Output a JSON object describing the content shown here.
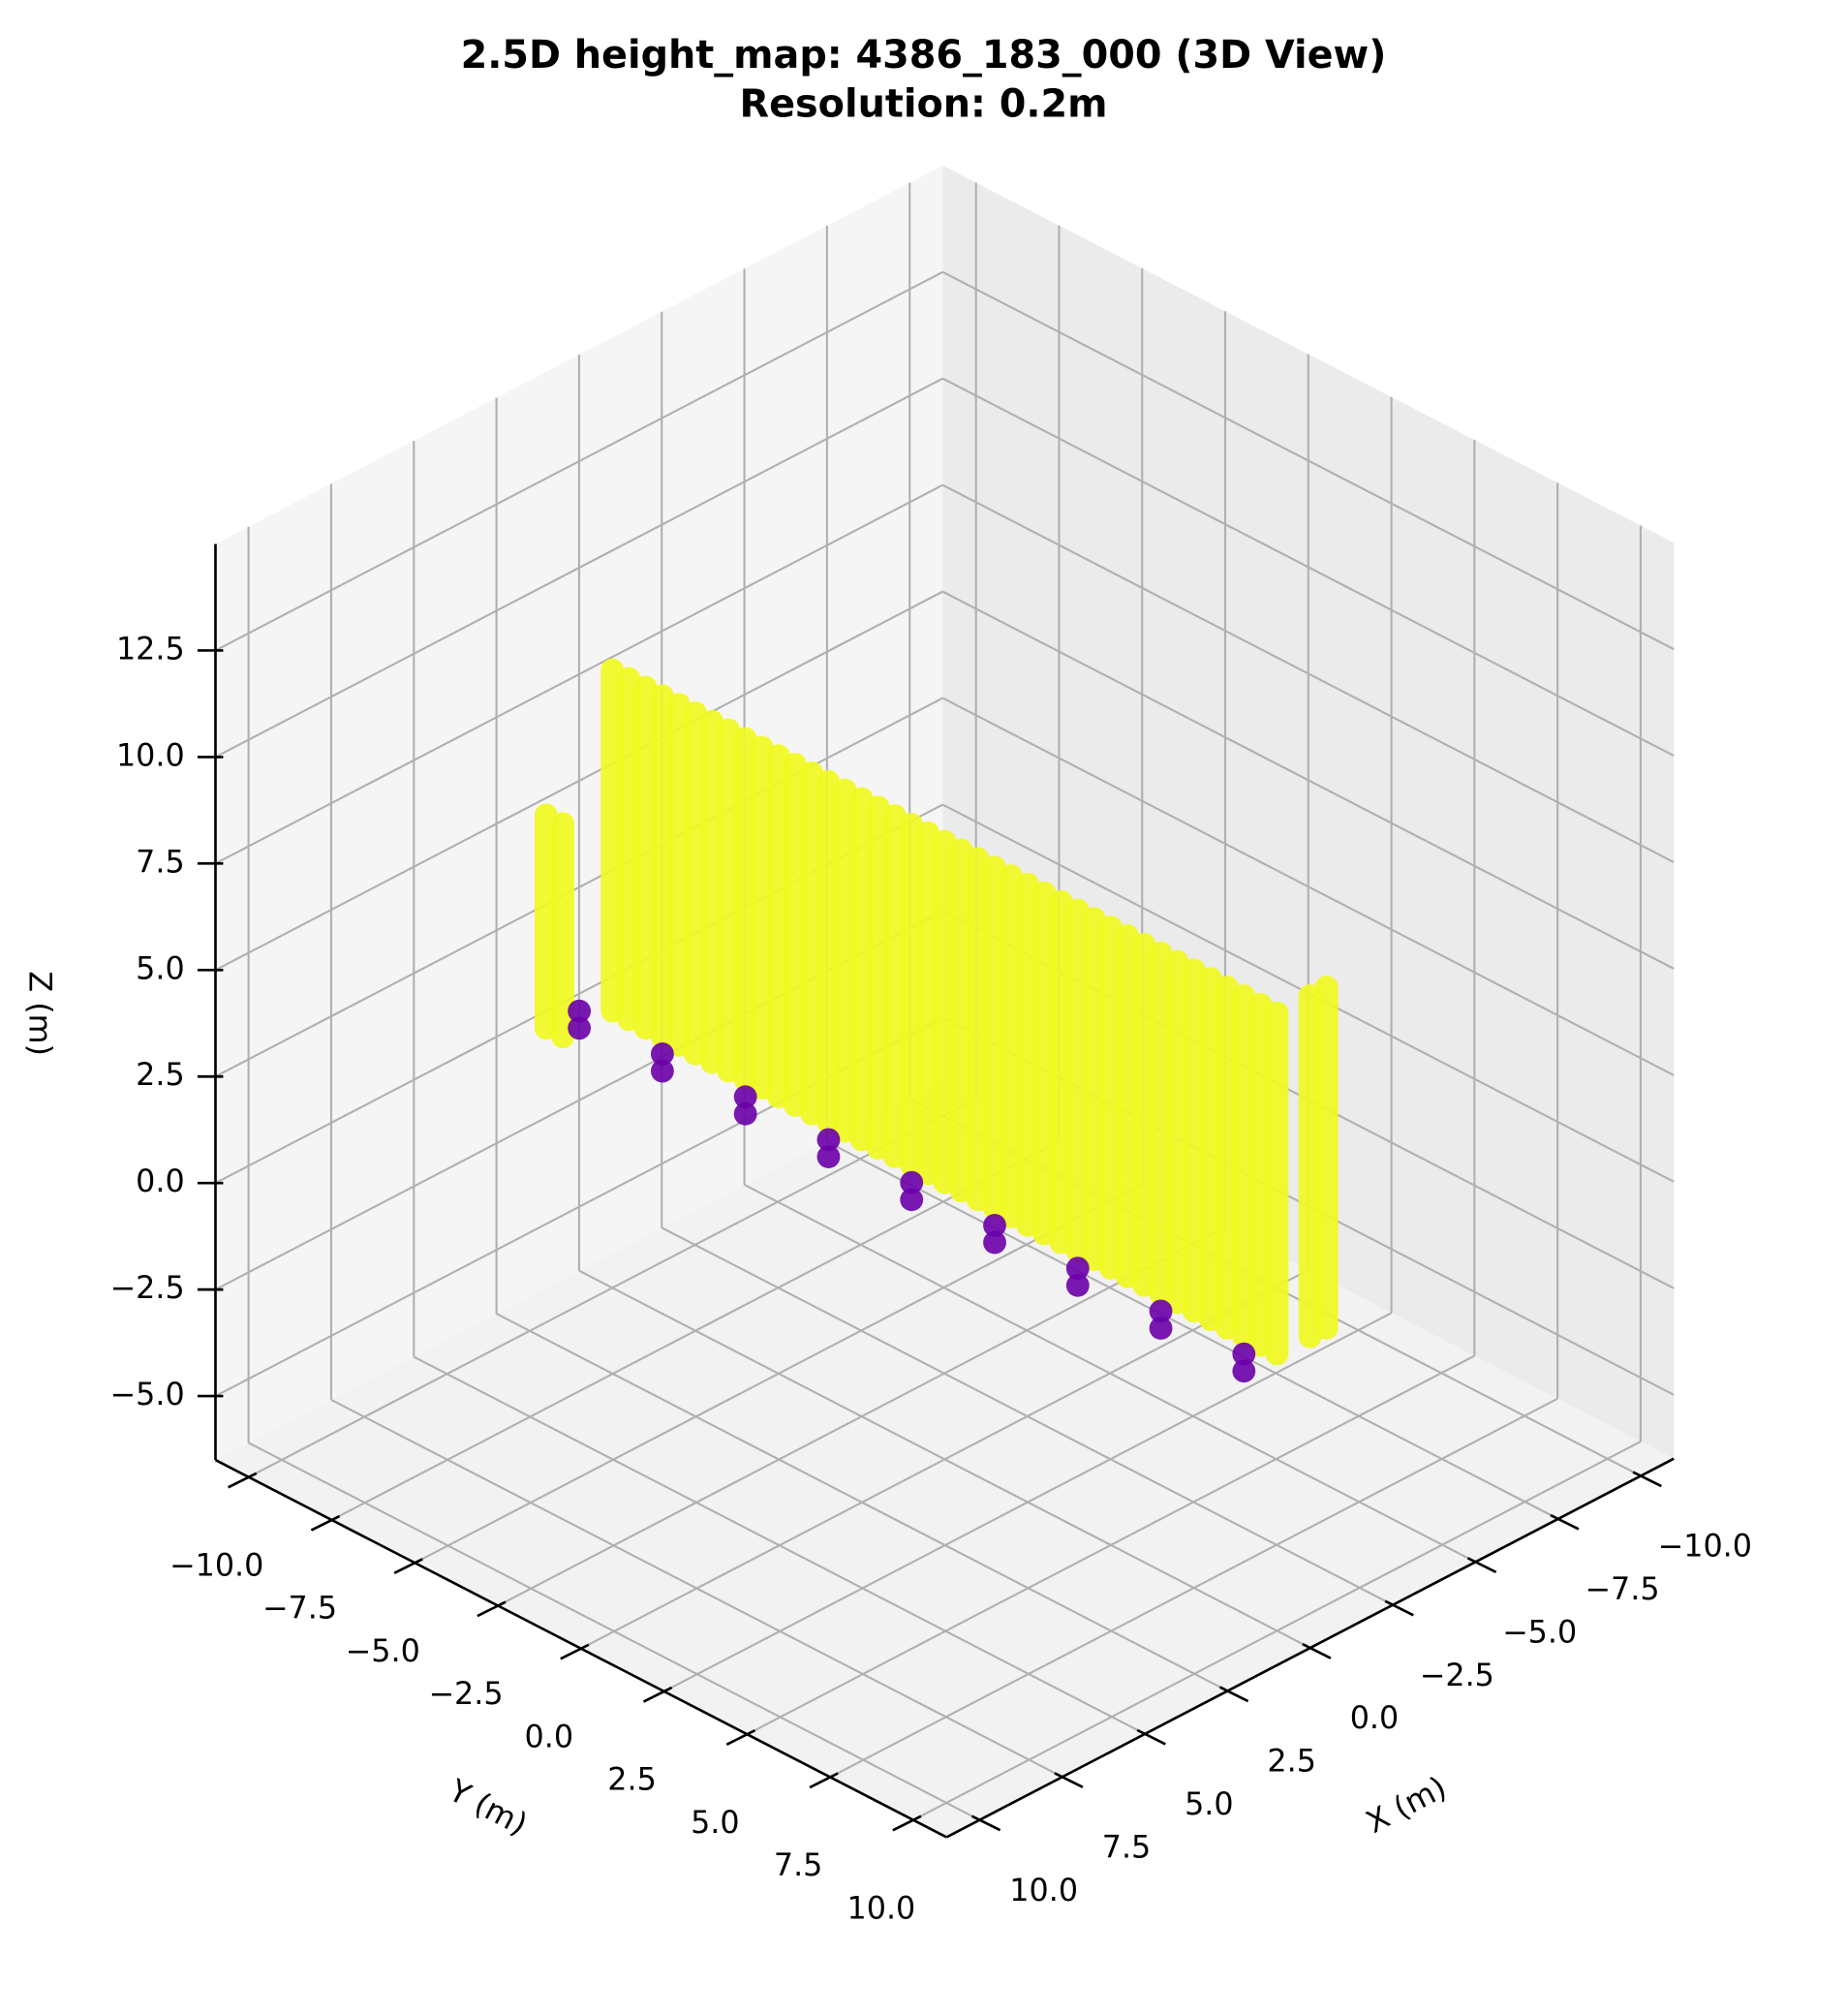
{
  "chart_data": {
    "type": "scatter3d",
    "title": "2.5D height_map: 4386_183_000 (3D View)",
    "subtitle": "Resolution: 0.2m",
    "xlabel": "X (m)",
    "ylabel": "Y (m)",
    "zlabel": "Z (m)",
    "xlim": [
      -11,
      11
    ],
    "ylim": [
      -11,
      11
    ],
    "zlim": [
      -6.5,
      15
    ],
    "xticks": [
      {
        "value": -10,
        "label": "−10.0"
      },
      {
        "value": -7.5,
        "label": "−7.5"
      },
      {
        "value": -5,
        "label": "−5.0"
      },
      {
        "value": -2.5,
        "label": "−2.5"
      },
      {
        "value": 0,
        "label": "0.0"
      },
      2.5,
      {
        "value": 5,
        "label": "5.0"
      },
      7.5,
      {
        "value": 10,
        "label": "10.0"
      }
    ],
    "yticks": [
      {
        "value": -10,
        "label": "−10.0"
      },
      {
        "value": -7.5,
        "label": "−7.5"
      },
      {
        "value": -5,
        "label": "−5.0"
      },
      {
        "value": -2.5,
        "label": "−2.5"
      },
      {
        "value": 0,
        "label": "0.0"
      },
      2.5,
      {
        "value": 5,
        "label": "5.0"
      },
      7.5,
      {
        "value": 10,
        "label": "10.0"
      }
    ],
    "zticks": [
      {
        "value": -5,
        "label": "−5.0"
      },
      {
        "value": -2.5,
        "label": "−2.5"
      },
      {
        "value": 0,
        "label": "0.0"
      },
      2.5,
      {
        "value": 5,
        "label": "5.0"
      },
      7.5,
      {
        "value": 10,
        "label": "10.0"
      },
      12.5
    ],
    "grid": true,
    "series": [
      {
        "color": "#f0f921",
        "marker": "column",
        "x": [
          1.5,
          1.5,
          0,
          0,
          0,
          0,
          0,
          0,
          0,
          0,
          0,
          0,
          0,
          0,
          0,
          0,
          0,
          0,
          0,
          0,
          0,
          0,
          0,
          0,
          0,
          0,
          0,
          0,
          0,
          0,
          0,
          0,
          0,
          0,
          0,
          0,
          0,
          0,
          0,
          0,
          0,
          0,
          0,
          -1,
          -1.5
        ],
        "y": [
          -10.5,
          -10,
          -10,
          -9.5,
          -9,
          -8.5,
          -8,
          -7.5,
          -7,
          -6.5,
          -6,
          -5.5,
          -5,
          -4.5,
          -4,
          -3.5,
          -3,
          -2.5,
          -2,
          -1.5,
          -1,
          -0.5,
          0,
          0.5,
          1,
          1.5,
          2,
          2.5,
          3,
          3.5,
          4,
          4.5,
          5,
          5.5,
          6,
          6.5,
          7,
          7.5,
          8,
          8.5,
          9,
          9.5,
          10,
          10,
          10
        ],
        "z": [
          5,
          5,
          8,
          8,
          8,
          8,
          8,
          8,
          8,
          8,
          8,
          8,
          8,
          8,
          8,
          8,
          8,
          8,
          8,
          8,
          8,
          8,
          8,
          8,
          8,
          8,
          8,
          8,
          8,
          8,
          8,
          8,
          8,
          8,
          8,
          8,
          8,
          8,
          8,
          8,
          8,
          8,
          8,
          8,
          8
        ]
      },
      {
        "color": "#6a00a8",
        "marker": "circle",
        "x": [
          1,
          1,
          1,
          1,
          1,
          1,
          1,
          1,
          1,
          1,
          1,
          1,
          1,
          1,
          1,
          1,
          1,
          1
        ],
        "y": [
          -10,
          -10,
          -7.5,
          -7.5,
          -5,
          -5,
          -2.5,
          -2.5,
          0,
          0,
          2.5,
          2.5,
          5,
          5,
          7.5,
          7.5,
          10,
          10
        ],
        "z": [
          0,
          0.4,
          0,
          0.4,
          0,
          0.4,
          0,
          0.4,
          0,
          0.4,
          0,
          0.4,
          0,
          0.4,
          0,
          0.4,
          0,
          0.4
        ]
      }
    ]
  }
}
